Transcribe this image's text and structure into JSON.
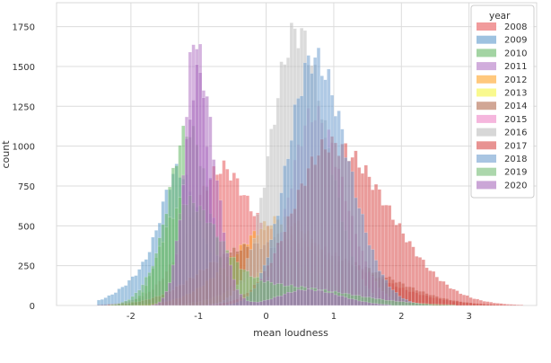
{
  "chart_data": {
    "type": "histogram",
    "xlabel": "mean loudness",
    "ylabel": "count",
    "xlim": [
      -3.1,
      4.0
    ],
    "ylim": [
      0,
      1900
    ],
    "xticks": [
      -2,
      -1,
      0,
      1,
      2,
      3
    ],
    "xtick_labels": [
      "-2",
      "-1",
      "0",
      "1",
      "2",
      "3"
    ],
    "yticks": [
      0,
      250,
      500,
      750,
      1000,
      1250,
      1500,
      1750
    ],
    "ytick_labels": [
      "0",
      "250",
      "500",
      "750",
      "1000",
      "1250",
      "1500",
      "1750"
    ],
    "grid": true,
    "bin_range": [
      -2.5,
      3.9
    ],
    "bin_count": 128,
    "legend": {
      "title": "year",
      "placement": "top-right",
      "entries": [
        "2008",
        "2009",
        "2010",
        "2011",
        "2012",
        "2013",
        "2014",
        "2015",
        "2016",
        "2017",
        "2018",
        "2019",
        "2020"
      ]
    },
    "series": [
      {
        "name": "2008",
        "color": "#e8585a",
        "shape": [
          [
            -0.7,
            0.45,
            0.35,
            600
          ],
          [
            0.2,
            0.9,
            1.1,
            420
          ]
        ]
      },
      {
        "name": "2009",
        "color": "#5e9acb",
        "shape": [
          [
            -1.3,
            0.22,
            0.3,
            520
          ],
          [
            -1.4,
            0.5,
            0.5,
            330
          ]
        ]
      },
      {
        "name": "2010",
        "color": "#66b866",
        "shape": [
          [
            -1.15,
            0.3,
            0.3,
            1100
          ]
        ]
      },
      {
        "name": "2011",
        "color": "#b277c4",
        "shape": [
          [
            -1.05,
            0.15,
            0.18,
            1700
          ]
        ]
      },
      {
        "name": "2012",
        "color": "#ffa326",
        "shape": [
          [
            0.25,
            0.7,
            0.6,
            540
          ]
        ]
      },
      {
        "name": "2013",
        "color": "#f5f542",
        "shape": [
          [
            0.3,
            0.6,
            0.6,
            260
          ]
        ]
      },
      {
        "name": "2014",
        "color": "#b36b4f",
        "shape": [
          [
            -0.3,
            0.7,
            0.8,
            330
          ],
          [
            1.2,
            0.8,
            0.8,
            220
          ]
        ]
      },
      {
        "name": "2015",
        "color": "#ee86c6",
        "shape": [
          [
            0.7,
            0.35,
            0.45,
            1200
          ]
        ]
      },
      {
        "name": "2016",
        "color": "#bdbdbd",
        "shape": [
          [
            0.45,
            0.38,
            0.45,
            1720
          ]
        ]
      },
      {
        "name": "2017",
        "color": "#d84b49",
        "shape": [
          [
            0.95,
            0.55,
            0.85,
            1010
          ]
        ]
      },
      {
        "name": "2018",
        "color": "#6f9fcf",
        "shape": [
          [
            0.7,
            0.38,
            0.5,
            1550
          ]
        ]
      },
      {
        "name": "2019",
        "color": "#74bd74",
        "shape": [
          [
            -1.2,
            0.35,
            0.5,
            650
          ],
          [
            0.2,
            0.6,
            1.0,
            120
          ]
        ]
      },
      {
        "name": "2020",
        "color": "#a96bbd",
        "shape": [
          [
            -1.0,
            0.2,
            0.25,
            1450
          ],
          [
            0.6,
            0.4,
            0.5,
            100
          ]
        ]
      }
    ]
  }
}
